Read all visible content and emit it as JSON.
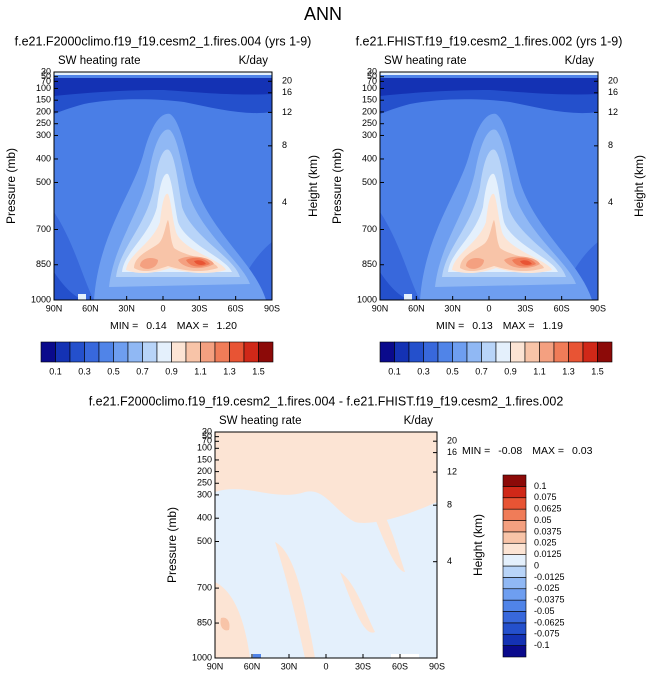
{
  "title": "ANN",
  "chart_data": [
    {
      "type": "contour",
      "title": "f.e21.F2000climo.f19_f19.cesm2_1.fires.004 (yrs 1-9)",
      "left_label": "SW heating rate",
      "right_label": "K/day",
      "ylabel": "Pressure (mb)",
      "y2label": "Height (km)",
      "xlim": [
        90,
        -90
      ],
      "xticks": [
        {
          "value": 90,
          "label": "90N"
        },
        {
          "value": 60,
          "label": "60N"
        },
        {
          "value": 30,
          "label": "30N"
        },
        0,
        {
          "value": -30,
          "label": "30S"
        },
        {
          "value": -60,
          "label": "60S"
        },
        {
          "value": -90,
          "label": "90S"
        }
      ],
      "ylim": [
        1000,
        30
      ],
      "yticks": [
        30,
        50,
        70,
        100,
        150,
        200,
        250,
        300,
        400,
        500,
        700,
        850,
        1000
      ],
      "y2ticks": [
        4,
        8,
        12,
        16,
        20
      ],
      "stats": {
        "min_label": "MIN =",
        "min": 0.14,
        "max_label": "MAX =",
        "max": {
          "value": 1.2,
          "label": "1.20"
        }
      },
      "colorbar": {
        "orientation": "horizontal",
        "clim": [
          0,
          1.6
        ],
        "colors": [
          "#0a0a8c",
          "#1432b4",
          "#2450cc",
          "#3868dc",
          "#5084e8",
          "#6e9ef0",
          "#90b8f4",
          "#b8d4f8",
          "#e4f0fc",
          "#fce4d4",
          "#f8c4a8",
          "#f4a080",
          "#f07c58",
          "#e85434",
          "#d02818",
          "#8c0a08"
        ],
        "ticks": [
          0.1,
          0.3,
          0.5,
          0.7,
          0.9,
          1.1,
          1.3,
          1.5
        ]
      }
    },
    {
      "type": "contour",
      "title": "f.e21.FHIST.f19_f19.cesm2_1.fires.002 (yrs 1-9)",
      "left_label": "SW heating rate",
      "right_label": "K/day",
      "ylabel": "Pressure (mb)",
      "y2label": "Height (km)",
      "xlim": [
        90,
        -90
      ],
      "xticks": [
        {
          "value": 90,
          "label": "90N"
        },
        {
          "value": 60,
          "label": "60N"
        },
        {
          "value": 30,
          "label": "30N"
        },
        0,
        {
          "value": -30,
          "label": "30S"
        },
        {
          "value": -60,
          "label": "60S"
        },
        {
          "value": -90,
          "label": "90S"
        }
      ],
      "ylim": [
        1000,
        30
      ],
      "yticks": [
        30,
        50,
        70,
        100,
        150,
        200,
        250,
        300,
        400,
        500,
        700,
        850,
        1000
      ],
      "y2ticks": [
        4,
        8,
        12,
        16,
        20
      ],
      "stats": {
        "min_label": "MIN =",
        "min": 0.13,
        "max_label": "MAX =",
        "max": 1.19
      },
      "colorbar": {
        "orientation": "horizontal",
        "clim": [
          0,
          1.6
        ],
        "colors": [
          "#0a0a8c",
          "#1432b4",
          "#2450cc",
          "#3868dc",
          "#5084e8",
          "#6e9ef0",
          "#90b8f4",
          "#b8d4f8",
          "#e4f0fc",
          "#fce4d4",
          "#f8c4a8",
          "#f4a080",
          "#f07c58",
          "#e85434",
          "#d02818",
          "#8c0a08"
        ],
        "ticks": [
          0.1,
          0.3,
          0.5,
          0.7,
          0.9,
          1.1,
          1.3,
          1.5
        ]
      }
    },
    {
      "type": "contour",
      "title": "f.e21.F2000climo.f19_f19.cesm2_1.fires.004 - f.e21.FHIST.f19_f19.cesm2_1.fires.002",
      "left_label": "SW heating rate",
      "right_label": "K/day",
      "ylabel": "Pressure (mb)",
      "y2label": "Height (km)",
      "xlim": [
        90,
        -90
      ],
      "xticks": [
        {
          "value": 90,
          "label": "90N"
        },
        {
          "value": 60,
          "label": "60N"
        },
        {
          "value": 30,
          "label": "30N"
        },
        0,
        {
          "value": -30,
          "label": "30S"
        },
        {
          "value": -60,
          "label": "60S"
        },
        {
          "value": -90,
          "label": "90S"
        }
      ],
      "ylim": [
        1000,
        30
      ],
      "yticks": [
        30,
        50,
        70,
        100,
        150,
        200,
        250,
        300,
        400,
        500,
        700,
        850,
        1000
      ],
      "y2ticks": [
        4,
        8,
        12,
        16,
        20
      ],
      "stats": {
        "min_label": "MIN =",
        "min": -0.08,
        "max_label": "MAX =",
        "max": 0.03
      },
      "colorbar": {
        "orientation": "vertical",
        "colors": [
          "#0a0a8c",
          "#1432b4",
          "#2450cc",
          "#3868dc",
          "#5084e8",
          "#6e9ef0",
          "#90b8f4",
          "#b8d4f8",
          "#e4f0fc",
          "#fce4d4",
          "#f8c4a8",
          "#f4a080",
          "#f07c58",
          "#e85434",
          "#d02818",
          "#8c0a08"
        ],
        "ticks": [
          -0.1,
          -0.075,
          -0.0625,
          -0.05,
          -0.0375,
          -0.025,
          -0.0125,
          0,
          0.0125,
          0.025,
          0.0375,
          0.05,
          0.0625,
          0.075,
          0.1
        ]
      }
    }
  ]
}
